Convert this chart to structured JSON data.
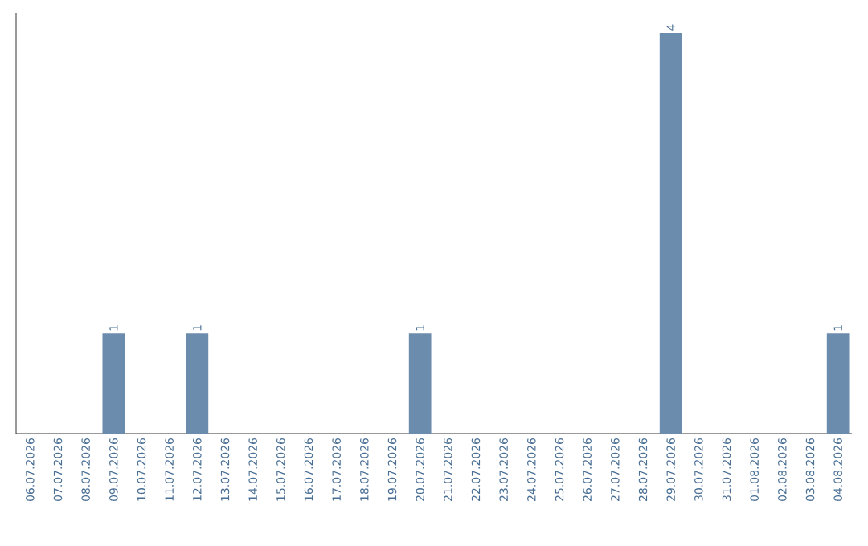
{
  "chart_data": {
    "type": "bar",
    "categories": [
      "06.07.2026",
      "07.07.2026",
      "08.07.2026",
      "09.07.2026",
      "10.07.2026",
      "11.07.2026",
      "12.07.2026",
      "13.07.2026",
      "14.07.2026",
      "15.07.2026",
      "16.07.2026",
      "17.07.2026",
      "18.07.2026",
      "19.07.2026",
      "20.07.2026",
      "21.07.2026",
      "22.07.2026",
      "23.07.2026",
      "24.07.2026",
      "25.07.2026",
      "26.07.2026",
      "27.07.2026",
      "28.07.2026",
      "29.07.2026",
      "30.07.2026",
      "31.07.2026",
      "01.08.2026",
      "02.08.2026",
      "03.08.2026",
      "04.08.2026"
    ],
    "values": [
      0,
      0,
      0,
      1,
      0,
      0,
      1,
      0,
      0,
      0,
      0,
      0,
      0,
      0,
      1,
      0,
      0,
      0,
      0,
      0,
      0,
      0,
      0,
      4,
      0,
      0,
      0,
      0,
      0,
      1
    ],
    "value_labels": [
      null,
      null,
      null,
      "1",
      null,
      null,
      "1",
      null,
      null,
      null,
      null,
      null,
      null,
      null,
      "1",
      null,
      null,
      null,
      null,
      null,
      null,
      null,
      null,
      "4",
      null,
      null,
      null,
      null,
      null,
      "1"
    ],
    "color": "#6b8cac"
  }
}
